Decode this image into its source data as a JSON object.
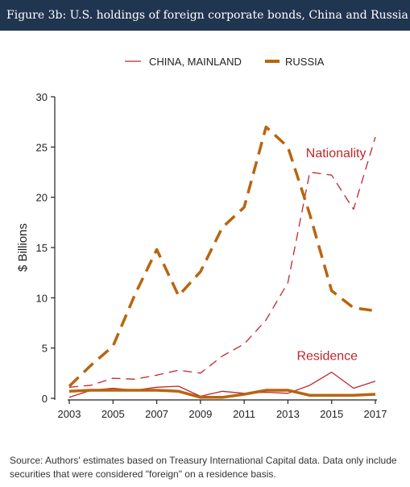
{
  "header": {
    "title": "Figure 3b: U.S. holdings of foreign corporate bonds, China and Russia"
  },
  "source_note": "Source: Authors' estimates based on Treasury International Capital data. Data only include securities that were considered \"foreign\" on a residence basis.",
  "colors": {
    "header_bg": "#1f3550",
    "china": "#c0272d",
    "russia": "#b8650f"
  },
  "chart_data": {
    "type": "line",
    "ylabel": "$ Billions",
    "xlabel": "",
    "ylim": [
      0,
      30
    ],
    "xlim": [
      2003,
      2017
    ],
    "x_ticks": [
      2003,
      2005,
      2007,
      2009,
      2011,
      2013,
      2015,
      2017
    ],
    "y_ticks": [
      0,
      5,
      10,
      15,
      20,
      25,
      30
    ],
    "legend_position": "top",
    "annotations": [
      {
        "text": "Nationality",
        "x": 2015.2,
        "y": 24.0
      },
      {
        "text": "Residence",
        "x": 2014.8,
        "y": 3.8
      }
    ],
    "series": [
      {
        "name": "CHINA, MAINLAND",
        "color": "#c0272d",
        "basis": "Nationality",
        "style": "dashed",
        "width": 1.3,
        "x": [
          2003,
          2004,
          2005,
          2006,
          2007,
          2008,
          2009,
          2010,
          2011,
          2012,
          2013,
          2014,
          2015,
          2016,
          2017
        ],
        "values": [
          1.1,
          1.3,
          2.0,
          1.9,
          2.3,
          2.8,
          2.5,
          4.2,
          5.4,
          7.8,
          11.5,
          22.5,
          22.2,
          18.8,
          26.0
        ]
      },
      {
        "name": "RUSSIA",
        "color": "#b8650f",
        "basis": "Nationality",
        "style": "dashed",
        "width": 3.5,
        "x": [
          2003,
          2004,
          2005,
          2006,
          2007,
          2008,
          2009,
          2010,
          2011,
          2012,
          2013,
          2014,
          2015,
          2016,
          2017
        ],
        "values": [
          1.2,
          3.3,
          5.2,
          10.3,
          14.8,
          10.2,
          12.6,
          17.0,
          19.0,
          27.0,
          25.0,
          18.3,
          10.7,
          9.0,
          8.7
        ]
      },
      {
        "name": "CHINA, MAINLAND",
        "color": "#c0272d",
        "basis": "Residence",
        "style": "solid",
        "width": 1.3,
        "x": [
          2003,
          2004,
          2005,
          2006,
          2007,
          2008,
          2009,
          2010,
          2011,
          2012,
          2013,
          2014,
          2015,
          2016,
          2017
        ],
        "values": [
          0.1,
          0.8,
          1.0,
          0.8,
          1.1,
          1.2,
          0.2,
          0.7,
          0.5,
          0.6,
          0.5,
          1.3,
          2.6,
          1.0,
          1.7
        ]
      },
      {
        "name": "RUSSIA",
        "color": "#b8650f",
        "basis": "Residence",
        "style": "solid",
        "width": 3.5,
        "x": [
          2003,
          2004,
          2005,
          2006,
          2007,
          2008,
          2009,
          2010,
          2011,
          2012,
          2013,
          2014,
          2015,
          2016,
          2017
        ],
        "values": [
          0.7,
          0.8,
          0.8,
          0.8,
          0.8,
          0.7,
          0.1,
          0.1,
          0.4,
          0.8,
          0.8,
          0.3,
          0.3,
          0.3,
          0.4
        ]
      }
    ],
    "legend": [
      {
        "label": "CHINA, MAINLAND",
        "color": "#c0272d",
        "width": 1.3
      },
      {
        "label": "RUSSIA",
        "color": "#b8650f",
        "width": 4
      }
    ]
  }
}
